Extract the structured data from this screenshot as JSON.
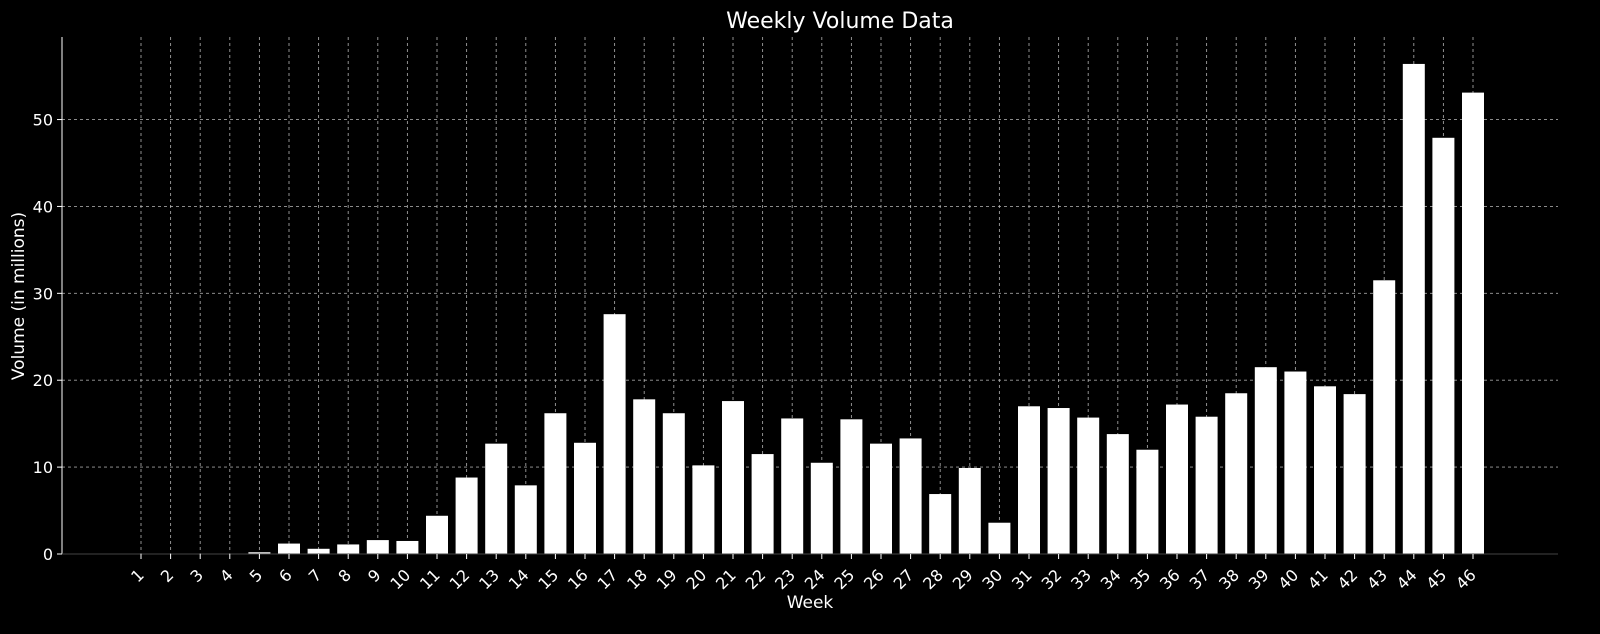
{
  "chart_data": {
    "type": "bar",
    "title": "Weekly Volume Data",
    "xlabel": "Week",
    "ylabel": "Volume (in millions)",
    "categories": [
      "1",
      "2",
      "3",
      "4",
      "5",
      "6",
      "7",
      "8",
      "9",
      "10",
      "11",
      "12",
      "13",
      "14",
      "15",
      "16",
      "17",
      "18",
      "19",
      "20",
      "21",
      "22",
      "23",
      "24",
      "25",
      "26",
      "27",
      "28",
      "29",
      "30",
      "31",
      "32",
      "33",
      "34",
      "35",
      "36",
      "37",
      "38",
      "39",
      "40",
      "41",
      "42",
      "43",
      "44",
      "45",
      "46"
    ],
    "values": [
      0,
      0,
      0,
      0,
      0.2,
      1.2,
      0.6,
      1.1,
      1.6,
      1.5,
      4.4,
      8.8,
      12.7,
      7.9,
      16.2,
      12.8,
      27.6,
      17.8,
      16.2,
      10.2,
      17.6,
      11.5,
      15.6,
      10.5,
      15.5,
      12.7,
      13.3,
      6.9,
      9.9,
      3.6,
      17.0,
      16.8,
      15.7,
      13.8,
      12.0,
      17.2,
      15.8,
      18.5,
      21.5,
      21.0,
      19.3,
      18.4,
      31.5,
      56.4,
      47.9,
      53.1
    ],
    "ylim": [
      0,
      59.5
    ],
    "yticks": [
      0,
      10,
      20,
      30,
      40,
      50
    ],
    "grid": true,
    "bar_color": "#ffffff",
    "background": "#000000"
  }
}
